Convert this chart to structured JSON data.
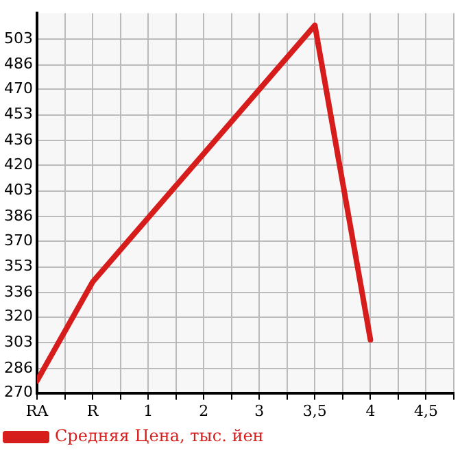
{
  "chart_data": {
    "type": "line",
    "categories": [
      "RA",
      "R",
      "1",
      "2",
      "3",
      "3,5",
      "4",
      "4,5"
    ],
    "series": [
      {
        "name": "Средняя Цена, тыс. йен",
        "color": "#d71c1c",
        "values": [
          278,
          343,
          null,
          null,
          null,
          512,
          305,
          null
        ]
      }
    ],
    "ylim": [
      270,
      520
    ],
    "yticks": [
      270,
      286,
      303,
      320,
      336,
      353,
      370,
      386,
      403,
      420,
      436,
      453,
      470,
      486,
      503
    ],
    "grid": true,
    "legend": "bottom"
  }
}
